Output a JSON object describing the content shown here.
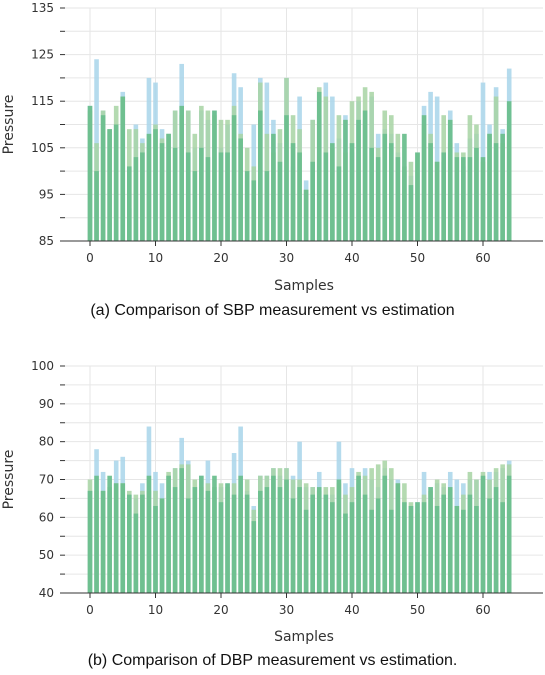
{
  "charts": [
    {
      "caption": "(a) Comparison of SBP measurement vs estimation",
      "chart_data": {
        "type": "bar",
        "xlabel": "Samples",
        "ylabel": "Pressure",
        "ylim": [
          85,
          135
        ],
        "yticks": [
          85,
          95,
          105,
          115,
          125,
          135
        ],
        "xticks": [
          0,
          10,
          20,
          30,
          40,
          50,
          60
        ],
        "x": [
          0,
          1,
          2,
          3,
          4,
          5,
          6,
          7,
          8,
          9,
          10,
          11,
          12,
          13,
          14,
          15,
          16,
          17,
          18,
          19,
          20,
          21,
          22,
          23,
          24,
          25,
          26,
          27,
          28,
          29,
          30,
          31,
          32,
          33,
          34,
          35,
          36,
          37,
          38,
          39,
          40,
          41,
          42,
          43,
          44,
          45,
          46,
          47,
          48,
          49,
          50,
          51,
          52,
          53,
          54,
          55,
          56,
          57,
          58,
          59,
          60,
          61,
          62,
          63,
          64
        ],
        "grid": true,
        "series": [
          {
            "color": "#a8d5ea",
            "values": [
              114,
              124,
              113,
              109,
              110,
              117,
              92,
              110,
              107,
              120,
              119,
              109,
              108,
              113,
              123,
              113,
              105,
              113,
              111,
              113,
              105,
              110,
              121,
              118,
              98,
              110,
              120,
              119,
              111,
              106,
              120,
              101,
              116,
              98,
              111,
              112,
              119,
              116,
              107,
              112,
              104,
              115,
              111,
              116,
              108,
              109,
              108,
              104,
              100,
              99,
              104,
              114,
              117,
              116,
              102,
              113,
              106,
              101,
              107,
              108,
              119,
              110,
              118,
              109,
              122
            ],
            "order": "back"
          },
          {
            "color": "#a7d3a3",
            "values": [
              113,
              106,
              113,
              109,
              114,
              116,
              109,
              109,
              106,
              105,
              110,
              107,
              108,
              113,
              112,
              113,
              108,
              114,
              113,
              112,
              111,
              111,
              114,
              108,
              105,
              101,
              119,
              108,
              104,
              109,
              120,
              112,
              109,
              96,
              111,
              118,
              116,
              105,
              112,
              104,
              115,
              116,
              118,
              117,
              105,
              113,
              112,
              108,
              101,
              102,
              104,
              110,
              108,
              102,
              112,
              106,
              104,
              104,
              112,
              110,
              102,
              108,
              116,
              106,
              109
            ]
          },
          {
            "color": "#6cbf8e",
            "values": [
              114,
              100,
              112,
              109,
              110,
              116,
              101,
              103,
              104,
              108,
              109,
              106,
              108,
              105,
              114,
              104,
              100,
              105,
              103,
              113,
              104,
              104,
              112,
              107,
              100,
              98,
              113,
              100,
              108,
              102,
              112,
              106,
              104,
              96,
              102,
              117,
              104,
              106,
              101,
              111,
              106,
              111,
              113,
              105,
              103,
              108,
              106,
              103,
              108,
              97,
              104,
              112,
              106,
              102,
              104,
              111,
              103,
              103,
              103,
              105,
              103,
              108,
              106,
              108,
              115
            ]
          }
        ]
      }
    },
    {
      "caption": "(b) Comparison of DBP measurement vs estimation.",
      "chart_data": {
        "type": "bar",
        "xlabel": "Samples",
        "ylabel": "Pressure",
        "ylim": [
          40,
          100
        ],
        "yticks": [
          40,
          50,
          60,
          70,
          80,
          90,
          100
        ],
        "xticks": [
          0,
          10,
          20,
          30,
          40,
          50,
          60
        ],
        "x": [
          0,
          1,
          2,
          3,
          4,
          5,
          6,
          7,
          8,
          9,
          10,
          11,
          12,
          13,
          14,
          15,
          16,
          17,
          18,
          19,
          20,
          21,
          22,
          23,
          24,
          25,
          26,
          27,
          28,
          29,
          30,
          31,
          32,
          33,
          34,
          35,
          36,
          37,
          38,
          39,
          40,
          41,
          42,
          43,
          44,
          45,
          46,
          47,
          48,
          49,
          50,
          51,
          52,
          53,
          54,
          55,
          56,
          57,
          58,
          59,
          60,
          61,
          62,
          63,
          64
        ],
        "grid": true,
        "series": [
          {
            "color": "#a8d5ea",
            "values": [
              67,
              78,
              72,
              67,
              75,
              76,
              66,
              65,
              69,
              84,
              72,
              69,
              71,
              73,
              81,
              75,
              68,
              71,
              75,
              67,
              68,
              69,
              77,
              84,
              67,
              63,
              71,
              71,
              73,
              71,
              73,
              71,
              80,
              68,
              68,
              72,
              66,
              66,
              80,
              69,
              73,
              69,
              73,
              70,
              68,
              73,
              70,
              70,
              60,
              63,
              64,
              72,
              68,
              69,
              68,
              72,
              70,
              69,
              70,
              70,
              70,
              72,
              72,
              73,
              75
            ]
          },
          {
            "color": "#a7d3a3",
            "values": [
              70,
              67,
              67,
              68,
              69,
              69,
              67,
              66,
              67,
              67,
              67,
              65,
              72,
              73,
              74,
              74,
              70,
              68,
              69,
              68,
              69,
              68,
              69,
              66,
              70,
              62,
              71,
              71,
              73,
              73,
              73,
              70,
              70,
              69,
              68,
              67,
              68,
              68,
              69,
              66,
              68,
              72,
              71,
              73,
              74,
              75,
              73,
              69,
              69,
              64,
              61,
              66,
              67,
              70,
              69,
              65,
              63,
              66,
              72,
              70,
              72,
              70,
              73,
              74,
              74
            ]
          },
          {
            "color": "#6cbf8e",
            "values": [
              67,
              71,
              67,
              71,
              69,
              69,
              66,
              61,
              66,
              71,
              63,
              65,
              71,
              68,
              73,
              65,
              68,
              71,
              67,
              71,
              64,
              69,
              66,
              71,
              66,
              59,
              67,
              68,
              71,
              68,
              70,
              65,
              68,
              62,
              66,
              68,
              66,
              64,
              70,
              61,
              64,
              71,
              66,
              62,
              65,
              71,
              62,
              69,
              64,
              63,
              64,
              64,
              68,
              63,
              66,
              68,
              63,
              62,
              66,
              63,
              71,
              65,
              68,
              64,
              71
            ]
          }
        ]
      }
    }
  ]
}
